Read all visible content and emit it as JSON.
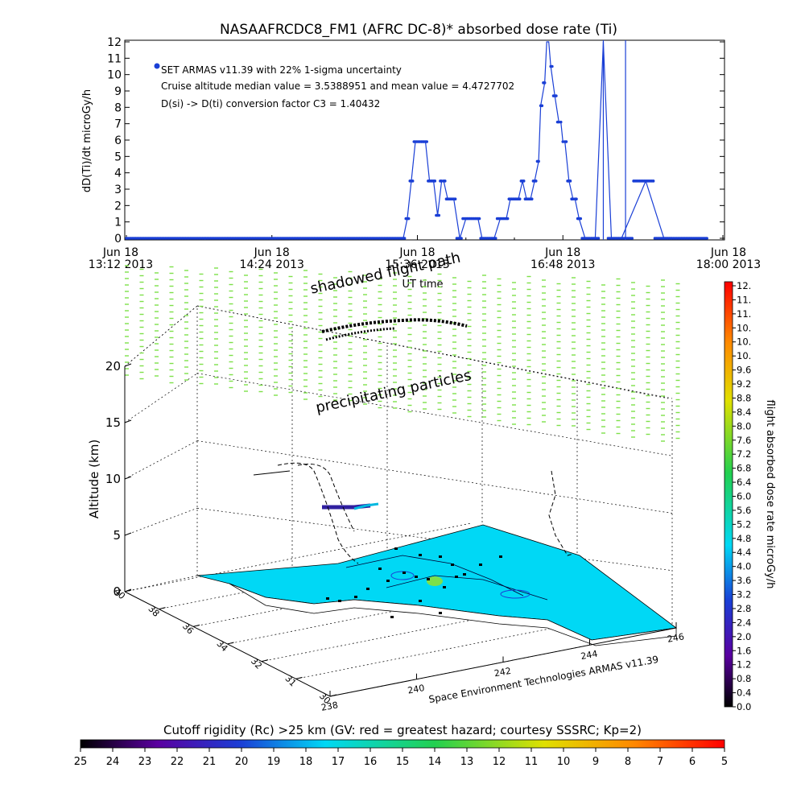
{
  "top_chart": {
    "title": "NASAAFRCDC8_FM1 (AFRC DC-8)* absorbed dose rate (Ti)",
    "ylabel": "dD(Ti)/dt microGy/h",
    "xlabel": "UT time",
    "legend_1": "SET ARMAS v11.39 with 22% 1-sigma uncertainty",
    "legend_2": "Cruise altitude median value = 3.5388951 and mean value = 4.4727702",
    "legend_3": "D(si) -> D(ti) conversion factor C3 = 1.40432",
    "ytick_labels": [
      "0",
      "1",
      "2",
      "3",
      "4",
      "5",
      "6",
      "7",
      "8",
      "9",
      "10",
      "11",
      "12"
    ],
    "xtick_dates": [
      "Jun 18",
      "Jun 18",
      "Jun 18",
      "Jun 18",
      "Jun 18"
    ],
    "xtick_times": [
      "13:12 2013",
      "14:24 2013",
      "15:36 2013",
      "16:48 2013",
      "18:00 2013"
    ]
  },
  "scene3d": {
    "zlabel": "Altitude (km)",
    "ztick_labels": [
      "0",
      "5",
      "10",
      "15",
      "20"
    ],
    "lat_tick_labels": [
      "40",
      "38",
      "36",
      "34",
      "32",
      "31",
      "30"
    ],
    "lon_tick_labels": [
      "238",
      "240",
      "242",
      "244",
      "246"
    ],
    "label_shadowed": "shadowed flight path",
    "label_precip": "precipitating particles",
    "footer_credit": "Space Environment Technologies ARMAS v11.39"
  },
  "colorbar_right": {
    "label": "flight absorbed dose rate microGy/h",
    "tick_labels": [
      "12.",
      "11.",
      "11.",
      "10.",
      "10.",
      "10.",
      "9.6",
      "9.2",
      "8.8",
      "8.4",
      "8.0",
      "7.6",
      "7.2",
      "6.8",
      "6.4",
      "6.0",
      "5.6",
      "5.2",
      "4.8",
      "4.4",
      "4.0",
      "3.6",
      "3.2",
      "2.8",
      "2.4",
      "2.0",
      "1.6",
      "1.2",
      "0.8",
      "0.4",
      "0.0"
    ]
  },
  "colorbar_bottom": {
    "title": "Cutoff rigidity (Rc) >25 km (GV: red = greatest hazard; courtesy SSSRC; Kp=2)",
    "tick_labels": [
      "25",
      "24",
      "23",
      "22",
      "21",
      "20",
      "19",
      "18",
      "17",
      "16",
      "15",
      "14",
      "13",
      "12",
      "11",
      "10",
      "9",
      "8",
      "7",
      "6",
      "5"
    ]
  },
  "colors": {
    "series": "#1a3fd6",
    "ground": "#00d8f5",
    "precip": "#7ee04a",
    "axis": "#000000"
  },
  "chart_data": {
    "type": "line",
    "title": "NASAAFRCDC8_FM1 (AFRC DC-8)* absorbed dose rate (Ti)",
    "xlabel": "UT time",
    "ylabel": "dD(Ti)/dt microGy/h",
    "x_unit": "minutes after 13:12 UT, Jun 18 2013",
    "xlim": [
      0,
      288
    ],
    "ylim": [
      0,
      12
    ],
    "series": [
      {
        "name": "SET ARMAS v11.39 with 22% 1-sigma uncertainty",
        "x": [
          0,
          20,
          40,
          60,
          80,
          100,
          120,
          130,
          137,
          139,
          141,
          143,
          146,
          148,
          150,
          152,
          154,
          156,
          157,
          159,
          162,
          165,
          168,
          170,
          172,
          174,
          176,
          178,
          180,
          182,
          185,
          188,
          190,
          192,
          194,
          196,
          198,
          200,
          202,
          204,
          205,
          207,
          208,
          209,
          210,
          212,
          214,
          215,
          216,
          217,
          219,
          221,
          222,
          224,
          227,
          230,
          232,
          236,
          240,
          245,
          257,
          266,
          268,
          270,
          274,
          280,
          288
        ],
        "y": [
          0,
          0,
          0,
          0,
          0,
          0,
          0,
          0,
          0,
          1.2,
          3.5,
          5.9,
          5.9,
          5.9,
          3.5,
          3.5,
          1.4,
          3.5,
          3.5,
          2.4,
          2.4,
          0,
          1.2,
          1.2,
          1.2,
          1.2,
          0,
          0,
          0,
          0,
          1.2,
          1.2,
          2.4,
          2.4,
          2.4,
          3.5,
          2.4,
          2.4,
          3.5,
          4.7,
          8.1,
          9.5,
          12,
          12,
          10.5,
          8.7,
          7.1,
          7.1,
          5.9,
          5.9,
          3.5,
          2.4,
          2.4,
          1.2,
          0,
          0,
          0,
          12,
          0,
          0,
          3.5,
          0,
          0,
          0,
          0,
          0,
          0
        ]
      }
    ]
  }
}
